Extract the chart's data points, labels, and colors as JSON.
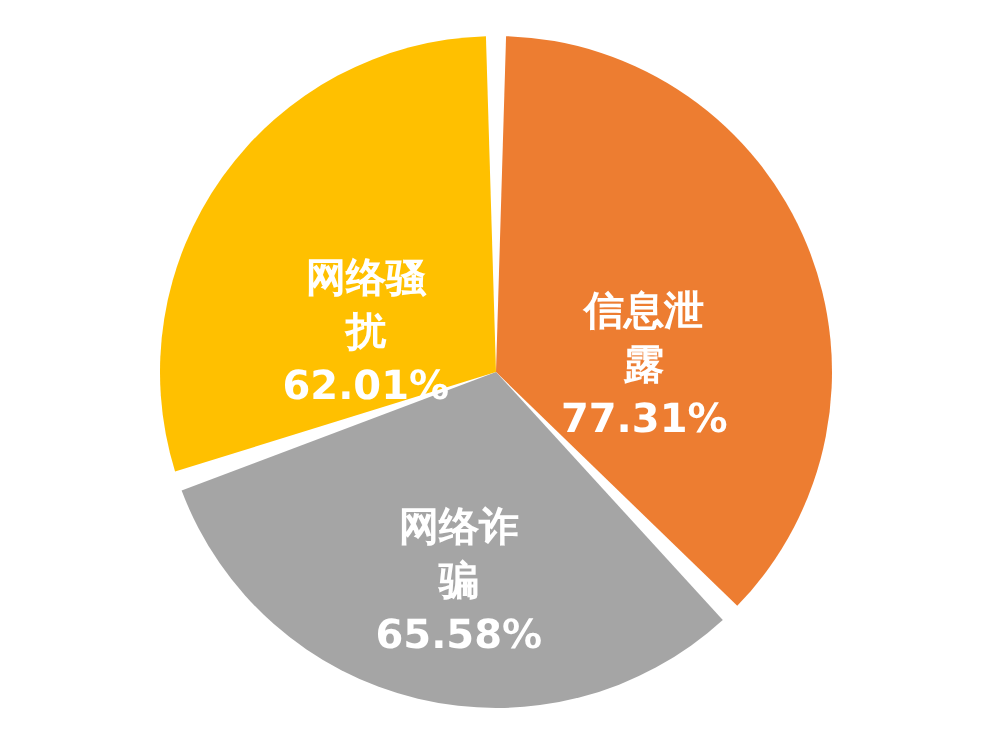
{
  "chart_data": {
    "type": "pie",
    "categories": [
      "信息泄露",
      "网络诈骗",
      "网络骚扰"
    ],
    "values": [
      77.31,
      65.58,
      62.01
    ],
    "value_labels": [
      "77.31%",
      "65.58%",
      "62.01%"
    ],
    "colors": [
      "#ed7d31",
      "#a5a5a5",
      "#ffc000"
    ]
  }
}
